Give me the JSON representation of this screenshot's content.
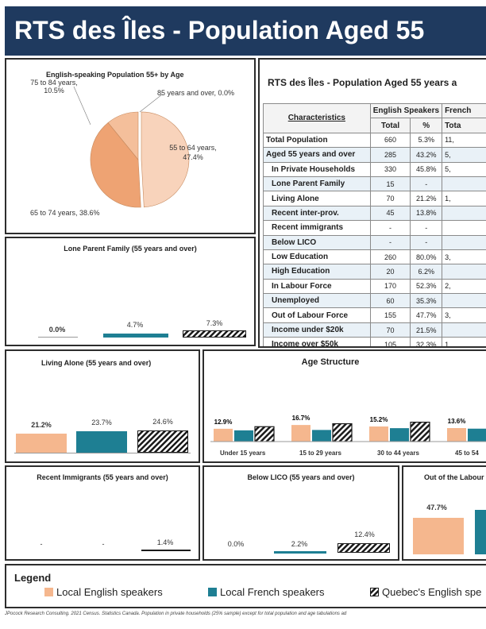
{
  "title": "RTS des Îles - Population Aged 55",
  "colors": {
    "english": "#f5b78e",
    "french": "#1e7f93",
    "quebec": "#1a1a1a",
    "header": "#1f3a5f"
  },
  "pie": {
    "title": "English-speaking Population 55+ by Age",
    "slices": [
      {
        "label": "55 to 64 years, 47.4%",
        "value": 47.4,
        "color": "#f8d3bb"
      },
      {
        "label": "65 to 74 years, 38.6%",
        "value": 38.6,
        "color": "#eea373"
      },
      {
        "label": "75 to 84 years, 10.5%",
        "value": 10.5,
        "color": "#f4bf9b"
      },
      {
        "label": "85 years and over, 0.0%",
        "value": 0.0,
        "color": "#f9dcc8"
      }
    ]
  },
  "table": {
    "title": "RTS des Îles - Population Aged 55 years a",
    "header_char": "Characteristics",
    "header_eng": "English Speakers",
    "header_fr": "French",
    "sub_total": "Total",
    "sub_pct": "%",
    "sub_fr_total": "Tota",
    "rows": [
      {
        "label": "Total Population",
        "total": "660",
        "pct": "5.3%",
        "fr": "11,"
      },
      {
        "label": "Aged 55 years and over",
        "total": "285",
        "pct": "43.2%",
        "fr": "5,"
      },
      {
        "label": "In Private Households",
        "total": "330",
        "pct": "45.8%",
        "fr": "5,"
      },
      {
        "label": "Lone Parent Family",
        "total": "15",
        "pct": "-",
        "fr": ""
      },
      {
        "label": "Living Alone",
        "total": "70",
        "pct": "21.2%",
        "fr": "1,"
      },
      {
        "label": "Recent inter-prov.",
        "total": "45",
        "pct": "13.8%",
        "fr": ""
      },
      {
        "label": "Recent immigrants",
        "total": "-",
        "pct": "-",
        "fr": ""
      },
      {
        "label": "Below LICO",
        "total": "-",
        "pct": "-",
        "fr": ""
      },
      {
        "label": "Low Education",
        "total": "260",
        "pct": "80.0%",
        "fr": "3,"
      },
      {
        "label": "High Education",
        "total": "20",
        "pct": "6.2%",
        "fr": ""
      },
      {
        "label": "In Labour Force",
        "total": "170",
        "pct": "52.3%",
        "fr": "2,"
      },
      {
        "label": "Unemployed",
        "total": "60",
        "pct": "35.3%",
        "fr": ""
      },
      {
        "label": "Out of Labour Force",
        "total": "155",
        "pct": "47.7%",
        "fr": "3,"
      },
      {
        "label": "Income under $20k",
        "total": "70",
        "pct": "21.5%",
        "fr": ""
      },
      {
        "label": "Income over $50k",
        "total": "105",
        "pct": "32.3%",
        "fr": "1,"
      }
    ]
  },
  "lone_parent": {
    "title": "Lone Parent Family (55 years and over)",
    "eng": 0.0,
    "fr": 4.7,
    "qc": 7.3,
    "eng_label": "0.0%",
    "fr_label": "4.7%",
    "qc_label": "7.3%"
  },
  "living_alone": {
    "title": "Living Alone (55 years and over)",
    "eng": 21.2,
    "fr": 23.7,
    "qc": 24.6,
    "eng_label": "21.2%",
    "fr_label": "23.7%",
    "qc_label": "24.6%"
  },
  "age_structure": {
    "title": "Age Structure",
    "groups": [
      {
        "label": "Under 15 years",
        "eng": 12.9,
        "fr": 11.3,
        "qc": 15.0,
        "eng_label": "12.9%"
      },
      {
        "label": "15 to 29 years",
        "eng": 16.7,
        "fr": 11.7,
        "qc": 18.0,
        "eng_label": "16.7%"
      },
      {
        "label": "30 to 44 years",
        "eng": 15.2,
        "fr": 13.5,
        "qc": 19.5,
        "eng_label": "15.2%"
      },
      {
        "label": "45 to 54",
        "eng": 13.6,
        "fr": 13.0,
        "qc": 0,
        "eng_label": "13.6%"
      }
    ]
  },
  "recent_immigrants": {
    "title": "Recent Immigrants (55 years and over)",
    "eng_label": "-",
    "fr_label": "-",
    "qc": 1.4,
    "qc_label": "1.4%"
  },
  "below_lico": {
    "title": "Below LICO (55 years and over)",
    "eng": 0.0,
    "fr": 2.2,
    "qc": 12.4,
    "eng_label": "0.0%",
    "fr_label": "2.2%",
    "qc_label": "12.4%"
  },
  "out_labour": {
    "title": "Out of the Labour",
    "eng": 47.7,
    "eng_label": "47.7%"
  },
  "legend": {
    "title": "Legend",
    "eng": "Local English speakers",
    "fr": "Local French speakers",
    "qc": "Quebec's English spe"
  },
  "footer": "JPocock Research Consulting. 2021 Census. Statistics Canada. Population in private households (25% sample) except for total population and age tabulations ad",
  "chart_data": [
    {
      "type": "pie",
      "title": "English-speaking Population 55+ by Age",
      "categories": [
        "55 to 64 years",
        "65 to 74 years",
        "75 to 84 years",
        "85 years and over"
      ],
      "values": [
        47.4,
        38.6,
        10.5,
        0.0
      ]
    },
    {
      "type": "bar",
      "title": "Lone Parent Family (55 years and over)",
      "categories": [
        "Local English speakers",
        "Local French speakers",
        "Quebec's English speakers"
      ],
      "values": [
        0.0,
        4.7,
        7.3
      ]
    },
    {
      "type": "bar",
      "title": "Living Alone (55 years and over)",
      "categories": [
        "Local English speakers",
        "Local French speakers",
        "Quebec's English speakers"
      ],
      "values": [
        21.2,
        23.7,
        24.6
      ]
    },
    {
      "type": "bar",
      "title": "Age Structure",
      "categories": [
        "Under 15 years",
        "15 to 29 years",
        "30 to 44 years",
        "45 to 54"
      ],
      "series": [
        {
          "name": "Local English speakers",
          "values": [
            12.9,
            16.7,
            15.2,
            13.6
          ]
        },
        {
          "name": "Local French speakers",
          "values": [
            11.3,
            11.7,
            13.5,
            13.0
          ]
        },
        {
          "name": "Quebec's English speakers",
          "values": [
            15.0,
            18.0,
            19.5,
            0
          ]
        }
      ]
    },
    {
      "type": "bar",
      "title": "Recent Immigrants (55 years and over)",
      "categories": [
        "Local English speakers",
        "Local French speakers",
        "Quebec's English speakers"
      ],
      "values": [
        0,
        0,
        1.4
      ]
    },
    {
      "type": "bar",
      "title": "Below LICO (55 years and over)",
      "categories": [
        "Local English speakers",
        "Local French speakers",
        "Quebec's English speakers"
      ],
      "values": [
        0.0,
        2.2,
        12.4
      ]
    },
    {
      "type": "bar",
      "title": "Out of the Labour",
      "categories": [
        "Local English speakers"
      ],
      "values": [
        47.7
      ]
    }
  ]
}
